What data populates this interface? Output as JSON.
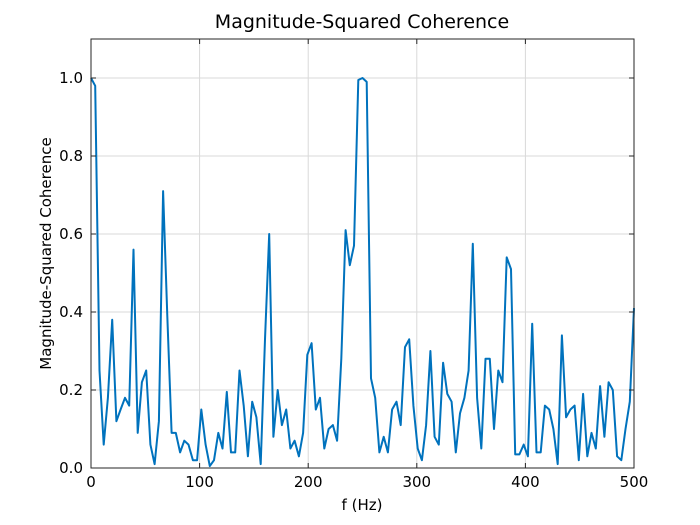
{
  "chart_data": {
    "type": "line",
    "title": "Magnitude-Squared Coherence",
    "xlabel": "f (Hz)",
    "ylabel": "Magnitude-Squared Coherence",
    "xlim": [
      0,
      500
    ],
    "ylim": [
      0,
      1.1
    ],
    "xticks": [
      0,
      100,
      200,
      300,
      400,
      500
    ],
    "yticks": [
      0.0,
      0.2,
      0.4,
      0.6,
      0.8,
      1.0
    ],
    "xtick_labels": [
      "0",
      "100",
      "200",
      "300",
      "400",
      "500"
    ],
    "ytick_labels": [
      "0.0",
      "0.2",
      "0.4",
      "0.6",
      "0.8",
      "1.0"
    ],
    "grid": true,
    "colors": {
      "series": "#0072BD"
    },
    "series": [
      {
        "x": [
          0,
          3.9,
          7.8,
          11.7,
          15.6,
          19.5,
          23.4,
          27.3,
          31.3,
          35.2,
          39.1,
          43,
          46.9,
          50.8,
          54.7,
          58.6,
          62.5,
          66.4,
          70.3,
          74.2,
          78.1,
          82,
          85.9,
          89.8,
          93.8,
          97.7,
          101.6,
          105.5,
          109.4,
          113.3,
          117.2,
          121.1,
          125,
          128.9,
          132.8,
          136.7,
          140.6,
          144.5,
          148.4,
          152.3,
          156.3,
          160.2,
          164.1,
          168,
          171.9,
          175.8,
          179.7,
          183.6,
          187.5,
          191.4,
          195.3,
          199.2,
          203.1,
          207,
          210.9,
          214.8,
          218.8,
          222.7,
          226.6,
          230.5,
          234.4,
          238.3,
          242.2,
          246.1,
          250,
          253.9,
          257.8,
          261.7,
          265.6,
          269.5,
          273.4,
          277.3,
          281.3,
          285.2,
          289.1,
          293,
          296.9,
          300.8,
          304.7,
          308.6,
          312.5,
          316.4,
          320.3,
          324.2,
          328.1,
          332,
          335.9,
          339.8,
          343.8,
          347.7,
          351.6,
          355.5,
          359.4,
          363.3,
          367.2,
          371.1,
          375,
          378.9,
          382.8,
          386.7,
          390.6,
          394.5,
          398.4,
          402.3,
          406.3,
          410.2,
          414.1,
          418,
          421.9,
          425.8,
          429.7,
          433.6,
          437.5,
          441.4,
          445.3,
          449.2,
          453.1,
          457,
          460.9,
          464.8,
          468.8,
          472.7,
          476.6,
          480.5,
          484.4,
          488.3,
          492.2,
          496.1,
          500
        ],
        "y": [
          1.0,
          0.98,
          0.25,
          0.06,
          0.18,
          0.38,
          0.12,
          0.15,
          0.18,
          0.16,
          0.56,
          0.09,
          0.22,
          0.25,
          0.06,
          0.01,
          0.12,
          0.71,
          0.39,
          0.09,
          0.09,
          0.04,
          0.07,
          0.06,
          0.02,
          0.02,
          0.15,
          0.06,
          0.005,
          0.02,
          0.09,
          0.05,
          0.195,
          0.04,
          0.04,
          0.25,
          0.16,
          0.03,
          0.17,
          0.13,
          0.01,
          0.33,
          0.6,
          0.08,
          0.2,
          0.11,
          0.15,
          0.05,
          0.07,
          0.03,
          0.09,
          0.29,
          0.32,
          0.15,
          0.18,
          0.05,
          0.1,
          0.11,
          0.07,
          0.28,
          0.61,
          0.52,
          0.57,
          0.995,
          1.0,
          0.99,
          0.23,
          0.18,
          0.04,
          0.08,
          0.04,
          0.15,
          0.17,
          0.11,
          0.31,
          0.33,
          0.16,
          0.05,
          0.02,
          0.11,
          0.3,
          0.08,
          0.06,
          0.27,
          0.19,
          0.17,
          0.04,
          0.14,
          0.18,
          0.25,
          0.575,
          0.18,
          0.05,
          0.28,
          0.28,
          0.1,
          0.25,
          0.22,
          0.54,
          0.51,
          0.035,
          0.035,
          0.06,
          0.03,
          0.37,
          0.04,
          0.04,
          0.16,
          0.15,
          0.1,
          0.01,
          0.34,
          0.13,
          0.15,
          0.16,
          0.02,
          0.19,
          0.03,
          0.09,
          0.05,
          0.21,
          0.08,
          0.22,
          0.2,
          0.03,
          0.02,
          0.1,
          0.17,
          0.41
        ]
      }
    ]
  }
}
